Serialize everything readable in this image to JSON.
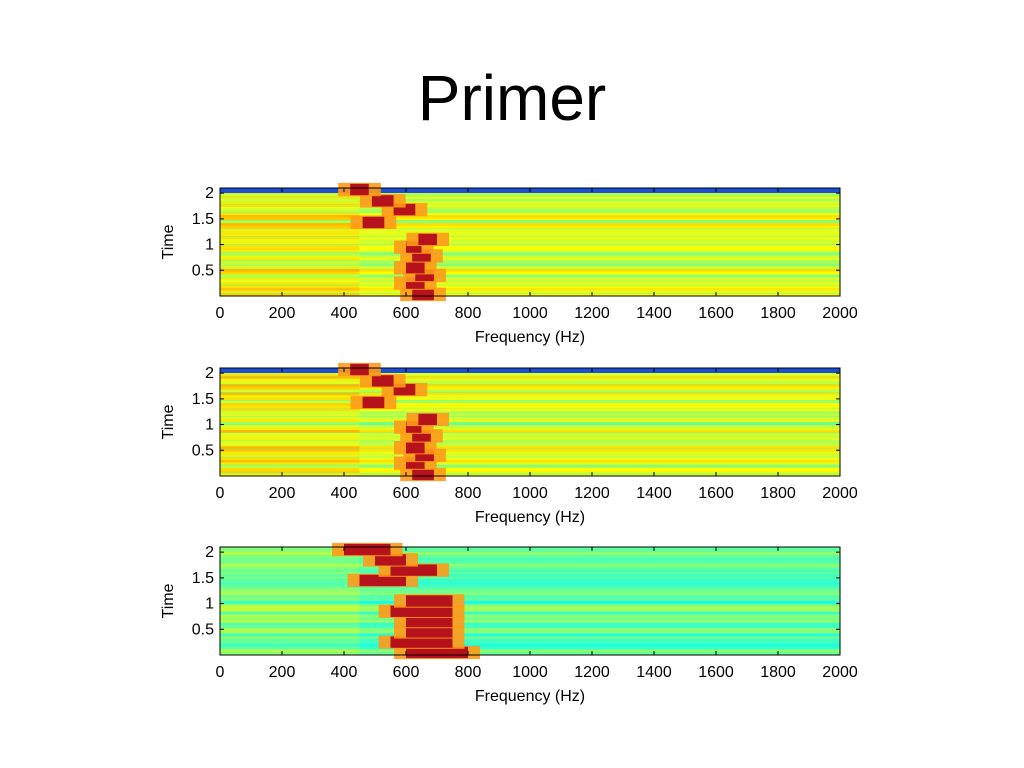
{
  "slide": {
    "title": "Primer"
  },
  "chart_data": [
    {
      "type": "heatmap",
      "title": "",
      "xlabel": "Frequency (Hz)",
      "ylabel": "Time",
      "xlim": [
        0,
        2000
      ],
      "ylim": [
        0,
        2.1
      ],
      "x_ticks": [
        "0",
        "200",
        "400",
        "600",
        "800",
        "1000",
        "1200",
        "1400",
        "1600",
        "1800",
        "2000"
      ],
      "y_ticks": [
        "0.5",
        "1",
        "1.5",
        "2"
      ],
      "colormap": "jet",
      "background_level": "yellow-green",
      "top_band_color": "#1a4fd6",
      "peaks": [
        {
          "time": 0.03,
          "freq_start": 620,
          "freq_end": 690
        },
        {
          "time": 0.25,
          "freq_start": 600,
          "freq_end": 660
        },
        {
          "time": 0.4,
          "freq_start": 630,
          "freq_end": 690
        },
        {
          "time": 0.55,
          "freq_start": 600,
          "freq_end": 660
        },
        {
          "time": 0.78,
          "freq_start": 620,
          "freq_end": 680
        },
        {
          "time": 0.95,
          "freq_start": 600,
          "freq_end": 650
        },
        {
          "time": 1.1,
          "freq_start": 640,
          "freq_end": 700
        },
        {
          "time": 1.43,
          "freq_start": 460,
          "freq_end": 530
        },
        {
          "time": 1.68,
          "freq_start": 560,
          "freq_end": 630
        },
        {
          "time": 1.85,
          "freq_start": 490,
          "freq_end": 560
        },
        {
          "time": 2.07,
          "freq_start": 420,
          "freq_end": 480
        }
      ]
    },
    {
      "type": "heatmap",
      "title": "",
      "xlabel": "Frequency (Hz)",
      "ylabel": "Time",
      "xlim": [
        0,
        2000
      ],
      "ylim": [
        0,
        2.1
      ],
      "x_ticks": [
        "0",
        "200",
        "400",
        "600",
        "800",
        "1000",
        "1200",
        "1400",
        "1600",
        "1800",
        "2000"
      ],
      "y_ticks": [
        "0.5",
        "1",
        "1.5",
        "2"
      ],
      "colormap": "jet",
      "background_level": "yellow-green",
      "top_band_color": "#1a4fd6",
      "peaks": [
        {
          "time": 0.03,
          "freq_start": 620,
          "freq_end": 690
        },
        {
          "time": 0.25,
          "freq_start": 600,
          "freq_end": 660
        },
        {
          "time": 0.4,
          "freq_start": 630,
          "freq_end": 690
        },
        {
          "time": 0.55,
          "freq_start": 600,
          "freq_end": 660
        },
        {
          "time": 0.78,
          "freq_start": 620,
          "freq_end": 680
        },
        {
          "time": 0.95,
          "freq_start": 600,
          "freq_end": 650
        },
        {
          "time": 1.1,
          "freq_start": 640,
          "freq_end": 700
        },
        {
          "time": 1.43,
          "freq_start": 460,
          "freq_end": 530
        },
        {
          "time": 1.68,
          "freq_start": 560,
          "freq_end": 630
        },
        {
          "time": 1.85,
          "freq_start": 490,
          "freq_end": 560
        },
        {
          "time": 2.07,
          "freq_start": 420,
          "freq_end": 480
        }
      ]
    },
    {
      "type": "heatmap",
      "title": "",
      "xlabel": "Frequency (Hz)",
      "ylabel": "Time",
      "xlim": [
        0,
        2000
      ],
      "ylim": [
        0,
        2.1
      ],
      "x_ticks": [
        "0",
        "200",
        "400",
        "600",
        "800",
        "1000",
        "1200",
        "1400",
        "1600",
        "1800",
        "2000"
      ],
      "y_ticks": [
        "0.5",
        "1",
        "1.5",
        "2"
      ],
      "colormap": "jet",
      "background_level": "cyan-green",
      "top_band_color": "",
      "peaks": [
        {
          "time": 0.05,
          "freq_start": 600,
          "freq_end": 800
        },
        {
          "time": 0.25,
          "freq_start": 550,
          "freq_end": 750
        },
        {
          "time": 0.45,
          "freq_start": 600,
          "freq_end": 750
        },
        {
          "time": 0.65,
          "freq_start": 600,
          "freq_end": 750
        },
        {
          "time": 0.85,
          "freq_start": 550,
          "freq_end": 750
        },
        {
          "time": 1.05,
          "freq_start": 600,
          "freq_end": 750
        },
        {
          "time": 1.45,
          "freq_start": 450,
          "freq_end": 600
        },
        {
          "time": 1.65,
          "freq_start": 550,
          "freq_end": 700
        },
        {
          "time": 1.85,
          "freq_start": 500,
          "freq_end": 600
        },
        {
          "time": 2.05,
          "freq_start": 400,
          "freq_end": 550
        }
      ]
    }
  ]
}
